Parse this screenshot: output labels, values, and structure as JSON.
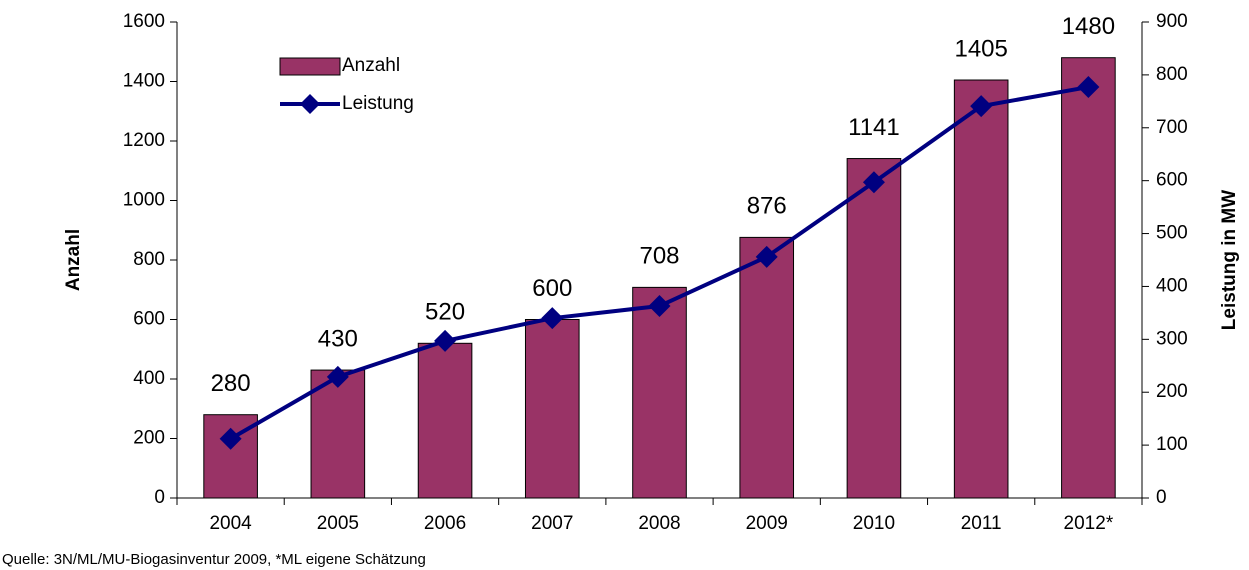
{
  "chart_data": {
    "type": "bar",
    "categories": [
      "2004",
      "2005",
      "2006",
      "2007",
      "2008",
      "2009",
      "2010",
      "2011",
      "2012*"
    ],
    "series": [
      {
        "name": "Anzahl",
        "type": "bar",
        "color": "#993366",
        "values": [
          280,
          430,
          520,
          600,
          708,
          876,
          1141,
          1405,
          1480
        ]
      },
      {
        "name": "Leistung",
        "type": "line",
        "axis": "y2",
        "color": "#000080",
        "values": [
          112,
          229,
          297,
          340,
          363,
          456,
          597,
          741,
          777
        ]
      }
    ],
    "ylabel": "Anzahl",
    "y2label": "Leistung in MW",
    "ylim": [
      0,
      1600
    ],
    "yticks": [
      0,
      200,
      400,
      600,
      800,
      1000,
      1200,
      1400,
      1600
    ],
    "y2lim": [
      0,
      900
    ],
    "y2ticks": [
      0,
      100,
      200,
      300,
      400,
      500,
      600,
      700,
      800,
      900
    ],
    "source": "Quelle: 3N/ML/MU-Biogasinventur 2009, *ML eigene Schätzung",
    "legend": "upper-left",
    "data_labels": true
  }
}
